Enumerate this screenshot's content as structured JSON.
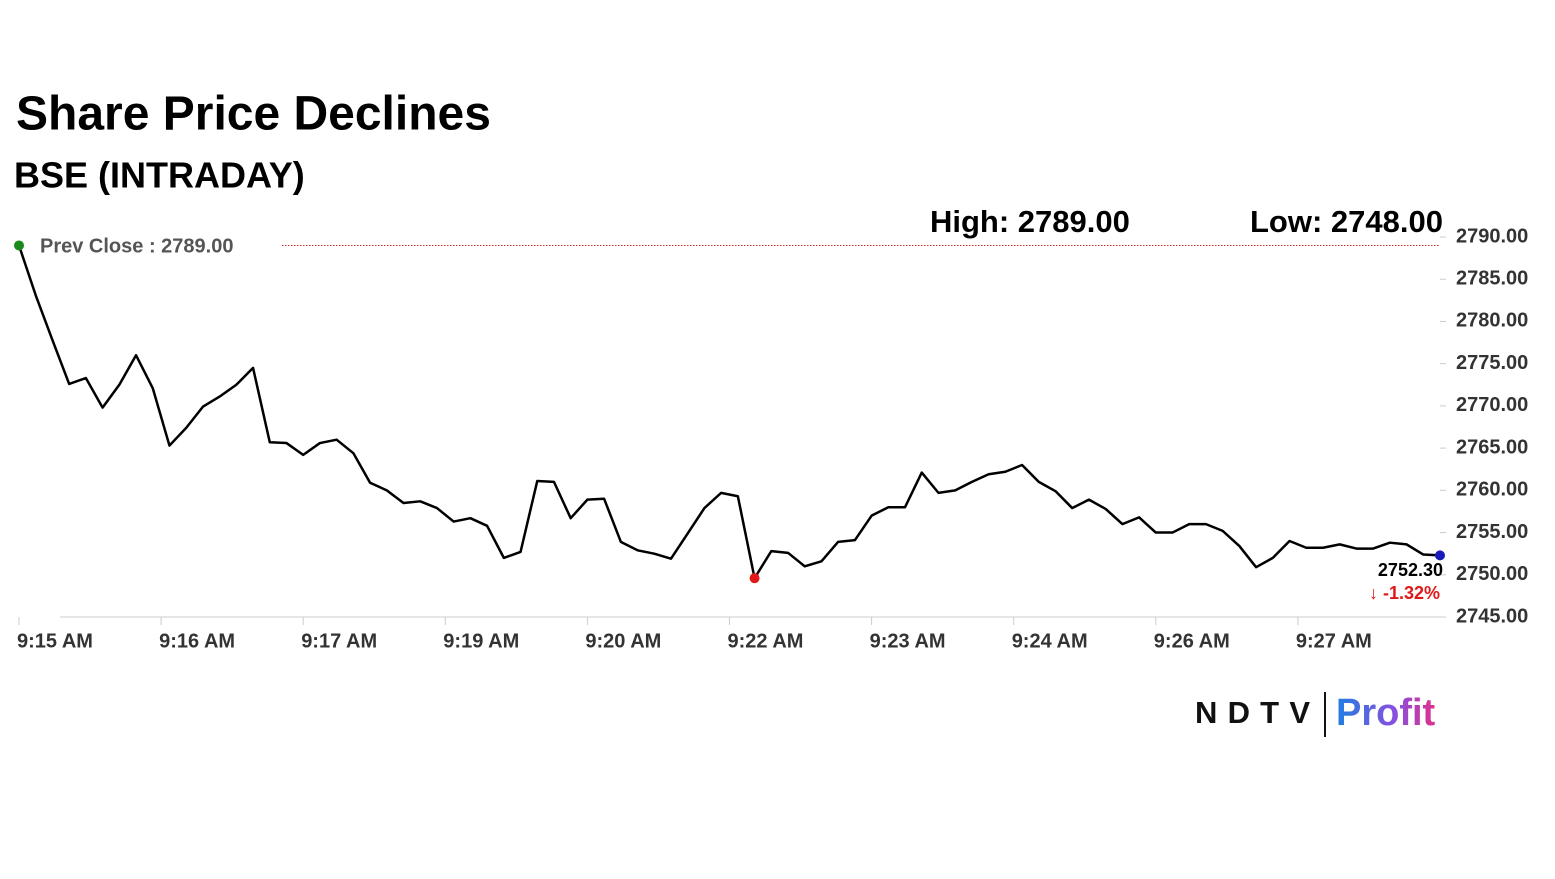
{
  "chart_data": {
    "type": "line",
    "title": "Share Price Declines",
    "subtitle": "BSE (INTRADAY)",
    "values": [
      2789.0,
      2783.1,
      2777.8,
      2772.6,
      2773.3,
      2769.8,
      2772.5,
      2776.0,
      2772.1,
      2765.3,
      2767.4,
      2769.9,
      2771.1,
      2772.5,
      2774.5,
      2765.7,
      2765.6,
      2764.2,
      2765.6,
      2766.0,
      2764.4,
      2760.9,
      2760.0,
      2758.5,
      2758.7,
      2757.9,
      2756.3,
      2756.7,
      2755.8,
      2752.0,
      2752.7,
      2761.1,
      2761.0,
      2756.7,
      2758.9,
      2759.0,
      2753.9,
      2752.9,
      2752.5,
      2751.9,
      2754.9,
      2757.9,
      2759.7,
      2759.3,
      2749.6,
      2752.8,
      2752.6,
      2751.0,
      2751.6,
      2753.9,
      2754.1,
      2757.0,
      2758.0,
      2758.0,
      2762.1,
      2759.7,
      2760.0,
      2761.0,
      2761.9,
      2762.2,
      2763.0,
      2761.0,
      2759.9,
      2757.9,
      2758.9,
      2757.8,
      2756.0,
      2756.8,
      2755.0,
      2755.0,
      2756.0,
      2756.0,
      2755.2,
      2753.4,
      2750.9,
      2752.0,
      2754.0,
      2753.2,
      2753.2,
      2753.6,
      2753.1,
      2753.1,
      2753.8,
      2753.6,
      2752.4,
      2752.3
    ],
    "color": "#000000",
    "xlim": [
      0,
      85
    ],
    "xticks": [
      {
        "value": 0,
        "label": "9:15 AM"
      },
      {
        "value": 8.5,
        "label": "9:16 AM"
      },
      {
        "value": 17,
        "label": "9:17 AM"
      },
      {
        "value": 25.5,
        "label": "9:19 AM"
      },
      {
        "value": 34,
        "label": "9:20 AM"
      },
      {
        "value": 42.5,
        "label": "9:22 AM"
      },
      {
        "value": 51,
        "label": "9:23 AM"
      },
      {
        "value": 59.5,
        "label": "9:24 AM"
      },
      {
        "value": 68,
        "label": "9:26 AM"
      },
      {
        "value": 76.5,
        "label": "9:27 AM"
      }
    ],
    "ylim": [
      2745,
      2790
    ],
    "yticks": [
      {
        "value": 2790,
        "label": "2790.00"
      },
      {
        "value": 2785,
        "label": "2785.00"
      },
      {
        "value": 2780,
        "label": "2780.00"
      },
      {
        "value": 2775,
        "label": "2775.00"
      },
      {
        "value": 2770,
        "label": "2770.00"
      },
      {
        "value": 2765,
        "label": "2765.00"
      },
      {
        "value": 2760,
        "label": "2760.00"
      },
      {
        "value": 2755,
        "label": "2755.00"
      },
      {
        "value": 2750,
        "label": "2750.00"
      },
      {
        "value": 2745,
        "label": "2745.00"
      }
    ],
    "prev_close": {
      "value": 2789,
      "label": "Prev Close : 2789.00",
      "color": "#d03030"
    },
    "annotations": {
      "high": "High: 2789.00",
      "low": "Low: 2748.00",
      "last": "2752.30",
      "change": "↓ -1.32%"
    },
    "marker_colors": {
      "start": "#1a8a1a",
      "low": "#e01818",
      "last": "#1a1ab8"
    },
    "grid": false
  },
  "branding": {
    "left": "NDTV",
    "right": "Profit"
  }
}
